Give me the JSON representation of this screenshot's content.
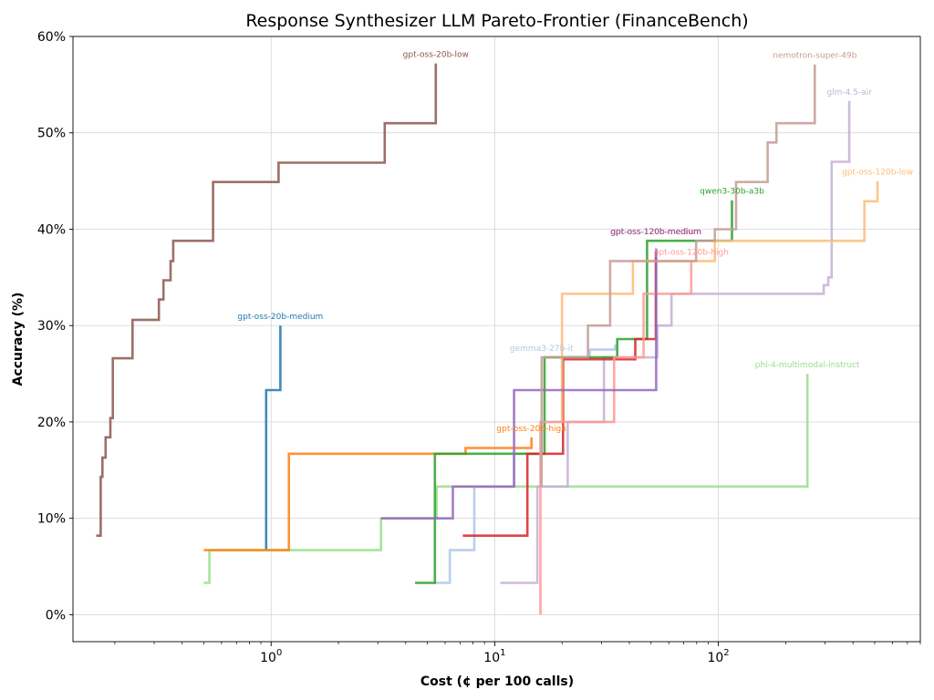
{
  "chart_data": {
    "type": "line",
    "subtype": "step",
    "title": "Response Synthesizer LLM Pareto-Frontier (FinanceBench)",
    "xlabel": "Cost (¢ per 100 calls)",
    "ylabel": "Accuracy (%)",
    "xscale": "log",
    "xlim": [
      0.13,
      800
    ],
    "ylim": [
      -2.8,
      60
    ],
    "grid": true,
    "x_ticks": [
      {
        "value": 1,
        "base": "10",
        "exp": "0"
      },
      {
        "value": 10,
        "base": "10",
        "exp": "1"
      },
      {
        "value": 100,
        "base": "10",
        "exp": "2"
      }
    ],
    "y_ticks": [
      {
        "value": 0,
        "label": "0%"
      },
      {
        "value": 10,
        "label": "10%"
      },
      {
        "value": 20,
        "label": "20%"
      },
      {
        "value": 30,
        "label": "30%"
      },
      {
        "value": 40,
        "label": "40%"
      },
      {
        "value": 50,
        "label": "50%"
      },
      {
        "value": 60,
        "label": "60%"
      }
    ],
    "series": [
      {
        "name": "phi-4-multimodal-instruct",
        "color": "#98df8a",
        "x": [
          0.5,
          0.53,
          0.53,
          3.1,
          3.1,
          5.5,
          5.5,
          250,
          250
        ],
        "y": [
          3.3,
          3.3,
          6.7,
          6.7,
          10,
          10,
          13.3,
          13.3,
          25
        ]
      },
      {
        "name": "gemma3-27b-it",
        "color": "#aec7e8",
        "x": [
          5.3,
          6.3,
          6.3,
          8.1,
          8.1,
          12.2,
          12.2,
          16.2,
          16.2,
          20,
          20,
          26.6,
          26.6,
          34.5,
          34.5
        ],
        "y": [
          3.3,
          3.3,
          6.7,
          6.7,
          13.3,
          13.3,
          16.7,
          16.7,
          20,
          20,
          26.7,
          26.7,
          27.5,
          27.5,
          28
        ]
      },
      {
        "name": "glm-4.5-air",
        "color": "#c5b0d5",
        "x": [
          10.6,
          15.5,
          15.5,
          21.2,
          21.2,
          30.8,
          30.8,
          53.3,
          53.3,
          61.7,
          61.7,
          296,
          296,
          310,
          310,
          321,
          321,
          385,
          385
        ],
        "y": [
          3.3,
          3.3,
          13.3,
          13.3,
          20,
          20,
          26.7,
          26.7,
          30,
          30,
          33.3,
          33.3,
          34.2,
          34.2,
          35,
          35,
          47,
          47,
          53.3
        ]
      },
      {
        "name": "gpt-oss-20b-low",
        "color": "#8c564b",
        "x": [
          0.165,
          0.173,
          0.173,
          0.176,
          0.176,
          0.182,
          0.182,
          0.191,
          0.191,
          0.196,
          0.196,
          0.24,
          0.24,
          0.315,
          0.315,
          0.33,
          0.33,
          0.355,
          0.355,
          0.365,
          0.365,
          0.55,
          0.55,
          1.08,
          1.08,
          3.22,
          3.22,
          5.45,
          5.45
        ],
        "y": [
          8.2,
          8.2,
          14.3,
          14.3,
          16.3,
          16.3,
          18.4,
          18.4,
          20.4,
          20.4,
          26.6,
          26.6,
          30.6,
          30.6,
          32.7,
          32.7,
          34.7,
          34.7,
          36.7,
          36.7,
          38.8,
          38.8,
          44.9,
          44.9,
          46.9,
          46.9,
          51,
          51,
          57.2
        ]
      },
      {
        "name": "gpt-oss-20b-medium",
        "color": "#1f77b4",
        "x": [
          0.95,
          0.95,
          1.1,
          1.1
        ],
        "y": [
          6.7,
          23.3,
          23.3,
          30
        ]
      },
      {
        "name": "gpt-oss-20b-high",
        "color": "#ff7f0e",
        "x": [
          0.5,
          1.2,
          1.2,
          7.4,
          7.4,
          14.6,
          14.6
        ],
        "y": [
          6.7,
          6.7,
          16.7,
          16.7,
          17.3,
          17.3,
          18.4
        ]
      },
      {
        "name": "qwen3-30b-a3b",
        "color": "#2ca02c",
        "x": [
          4.4,
          5.4,
          5.4,
          16.7,
          16.7,
          35.3,
          35.3,
          48,
          48,
          115,
          115
        ],
        "y": [
          3.3,
          3.3,
          16.7,
          16.7,
          26.7,
          26.7,
          28.6,
          28.6,
          38.8,
          38.8,
          43
        ]
      },
      {
        "name": "gpt-oss-120b-medium",
        "color": "#d62728",
        "x": [
          7.2,
          14,
          14,
          20.2,
          20.2,
          42.5,
          42.5,
          52.5,
          52.5
        ],
        "y": [
          8.2,
          8.2,
          16.7,
          16.7,
          26.5,
          26.5,
          28.6,
          28.6,
          37.5
        ]
      },
      {
        "name": "gpt-oss-120b-low",
        "color": "#ffbb78",
        "x": [
          20,
          20,
          41.5,
          41.5,
          96.4,
          96.4,
          450,
          450,
          515,
          515
        ],
        "y": [
          20,
          33.3,
          33.3,
          36.7,
          36.7,
          38.8,
          38.8,
          42.9,
          42.9,
          45
        ]
      },
      {
        "name": "gpt-oss-120b-high",
        "color": "#ff9896",
        "x": [
          16,
          16,
          34.2,
          34.2,
          46.3,
          46.3,
          75.6,
          75.6
        ],
        "y": [
          0,
          20,
          20,
          26.7,
          26.7,
          33.3,
          33.3,
          36.7
        ]
      },
      {
        "name": "gpt-oss-120b-medium-2",
        "color": "#9467bd",
        "x": [
          3.1,
          6.5,
          6.5,
          12.2,
          12.2,
          52.7,
          52.7
        ],
        "y": [
          10,
          10,
          13.3,
          13.3,
          23.3,
          23.3,
          38
        ]
      },
      {
        "name": "nemotron-super-49b",
        "color": "#c49c94",
        "x": [
          16.2,
          16.2,
          26.1,
          26.1,
          32.8,
          32.8,
          79.5,
          79.5,
          96.4,
          96.4,
          120,
          120,
          166,
          166,
          182,
          182,
          270,
          270
        ],
        "y": [
          13.3,
          26.7,
          26.7,
          30,
          30,
          36.7,
          36.7,
          38.8,
          38.8,
          40,
          40,
          44.9,
          44.9,
          49,
          49,
          51,
          51,
          57.1
        ]
      }
    ],
    "annotations": [
      {
        "text": "gpt-oss-20b-low",
        "x": 5.45,
        "y": 57.2,
        "color": "#8c564b"
      },
      {
        "text": "gpt-oss-20b-medium",
        "x": 1.1,
        "y": 30,
        "color": "#1f77b4"
      },
      {
        "text": "gpt-oss-20b-high",
        "x": 14.6,
        "y": 18.4,
        "color": "#ff7f0e"
      },
      {
        "text": "gemma3-27b-it",
        "x": 16.2,
        "y": 26.7,
        "color": "#aec7e8"
      },
      {
        "text": "qwen3-30b-a3b",
        "x": 115,
        "y": 43,
        "color": "#2ca02c"
      },
      {
        "text": "gpt-oss-120b-medium",
        "x": 52.5,
        "y": 38.8,
        "color": "#d62728"
      },
      {
        "text": "gpt-oss-120b-medium",
        "x": 52.7,
        "y": 38.8,
        "color": "#9467bd"
      },
      {
        "text": "gpt-oss-120b-high",
        "x": 75.6,
        "y": 36.7,
        "color": "#ff9896"
      },
      {
        "text": "nemotron-super-49b",
        "x": 270,
        "y": 57.1,
        "color": "#c49c94"
      },
      {
        "text": "glm-4.5-air",
        "x": 385,
        "y": 53.3,
        "color": "#c5b0d5"
      },
      {
        "text": "gpt-oss-120b-low",
        "x": 515,
        "y": 45,
        "color": "#ffbb78"
      },
      {
        "text": "phi-4-multimodal-instruct",
        "x": 250,
        "y": 25,
        "color": "#98df8a"
      }
    ]
  }
}
